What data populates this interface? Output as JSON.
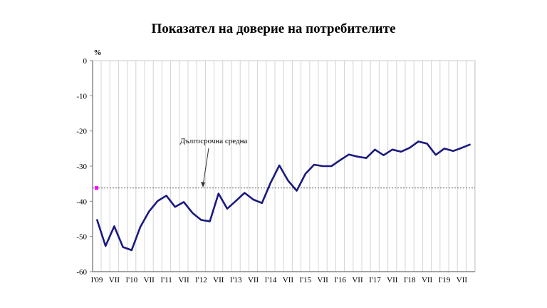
{
  "chart_data": {
    "type": "line",
    "title": "Показател на доверие на потребителите",
    "ylabel": "%",
    "ylim": [
      -60,
      0
    ],
    "yticks": [
      0,
      -10,
      -20,
      -30,
      -40,
      -50,
      -60
    ],
    "xtick_labels": [
      "I'09",
      "VII",
      "I'10",
      "VII",
      "I'11",
      "VII",
      "I'12",
      "VII",
      "I'13",
      "VII",
      "I'14",
      "VII",
      "I'15",
      "VII",
      "I'16",
      "VII",
      "I'17",
      "VII",
      "I'18",
      "VII",
      "I'19",
      "VII"
    ],
    "frequency": "quarterly",
    "x_start": "2009-01",
    "grid": "vertical",
    "series": [
      {
        "color": "#1a1a80",
        "values": [
          -45.1,
          -52.7,
          -47.1,
          -53.0,
          -53.9,
          -47.3,
          -42.9,
          -39.9,
          -38.4,
          -41.6,
          -40.2,
          -43.3,
          -45.3,
          -45.7,
          -37.8,
          -42.1,
          -39.9,
          -37.6,
          -39.5,
          -40.5,
          -34.7,
          -29.8,
          -34.1,
          -37.0,
          -32.2,
          -29.6,
          -30.0,
          -30.0,
          -28.3,
          -26.7,
          -27.3,
          -27.7,
          -25.3,
          -26.9,
          -25.3,
          -25.9,
          -24.8,
          -23.0,
          -23.6,
          -26.8,
          -25.0,
          -25.7,
          -24.8,
          -23.8
        ]
      }
    ],
    "reference_line": {
      "label": "Дългосрочна средна",
      "value": -36.2,
      "style": "dotted",
      "marker_color": "#ff00ff"
    }
  }
}
